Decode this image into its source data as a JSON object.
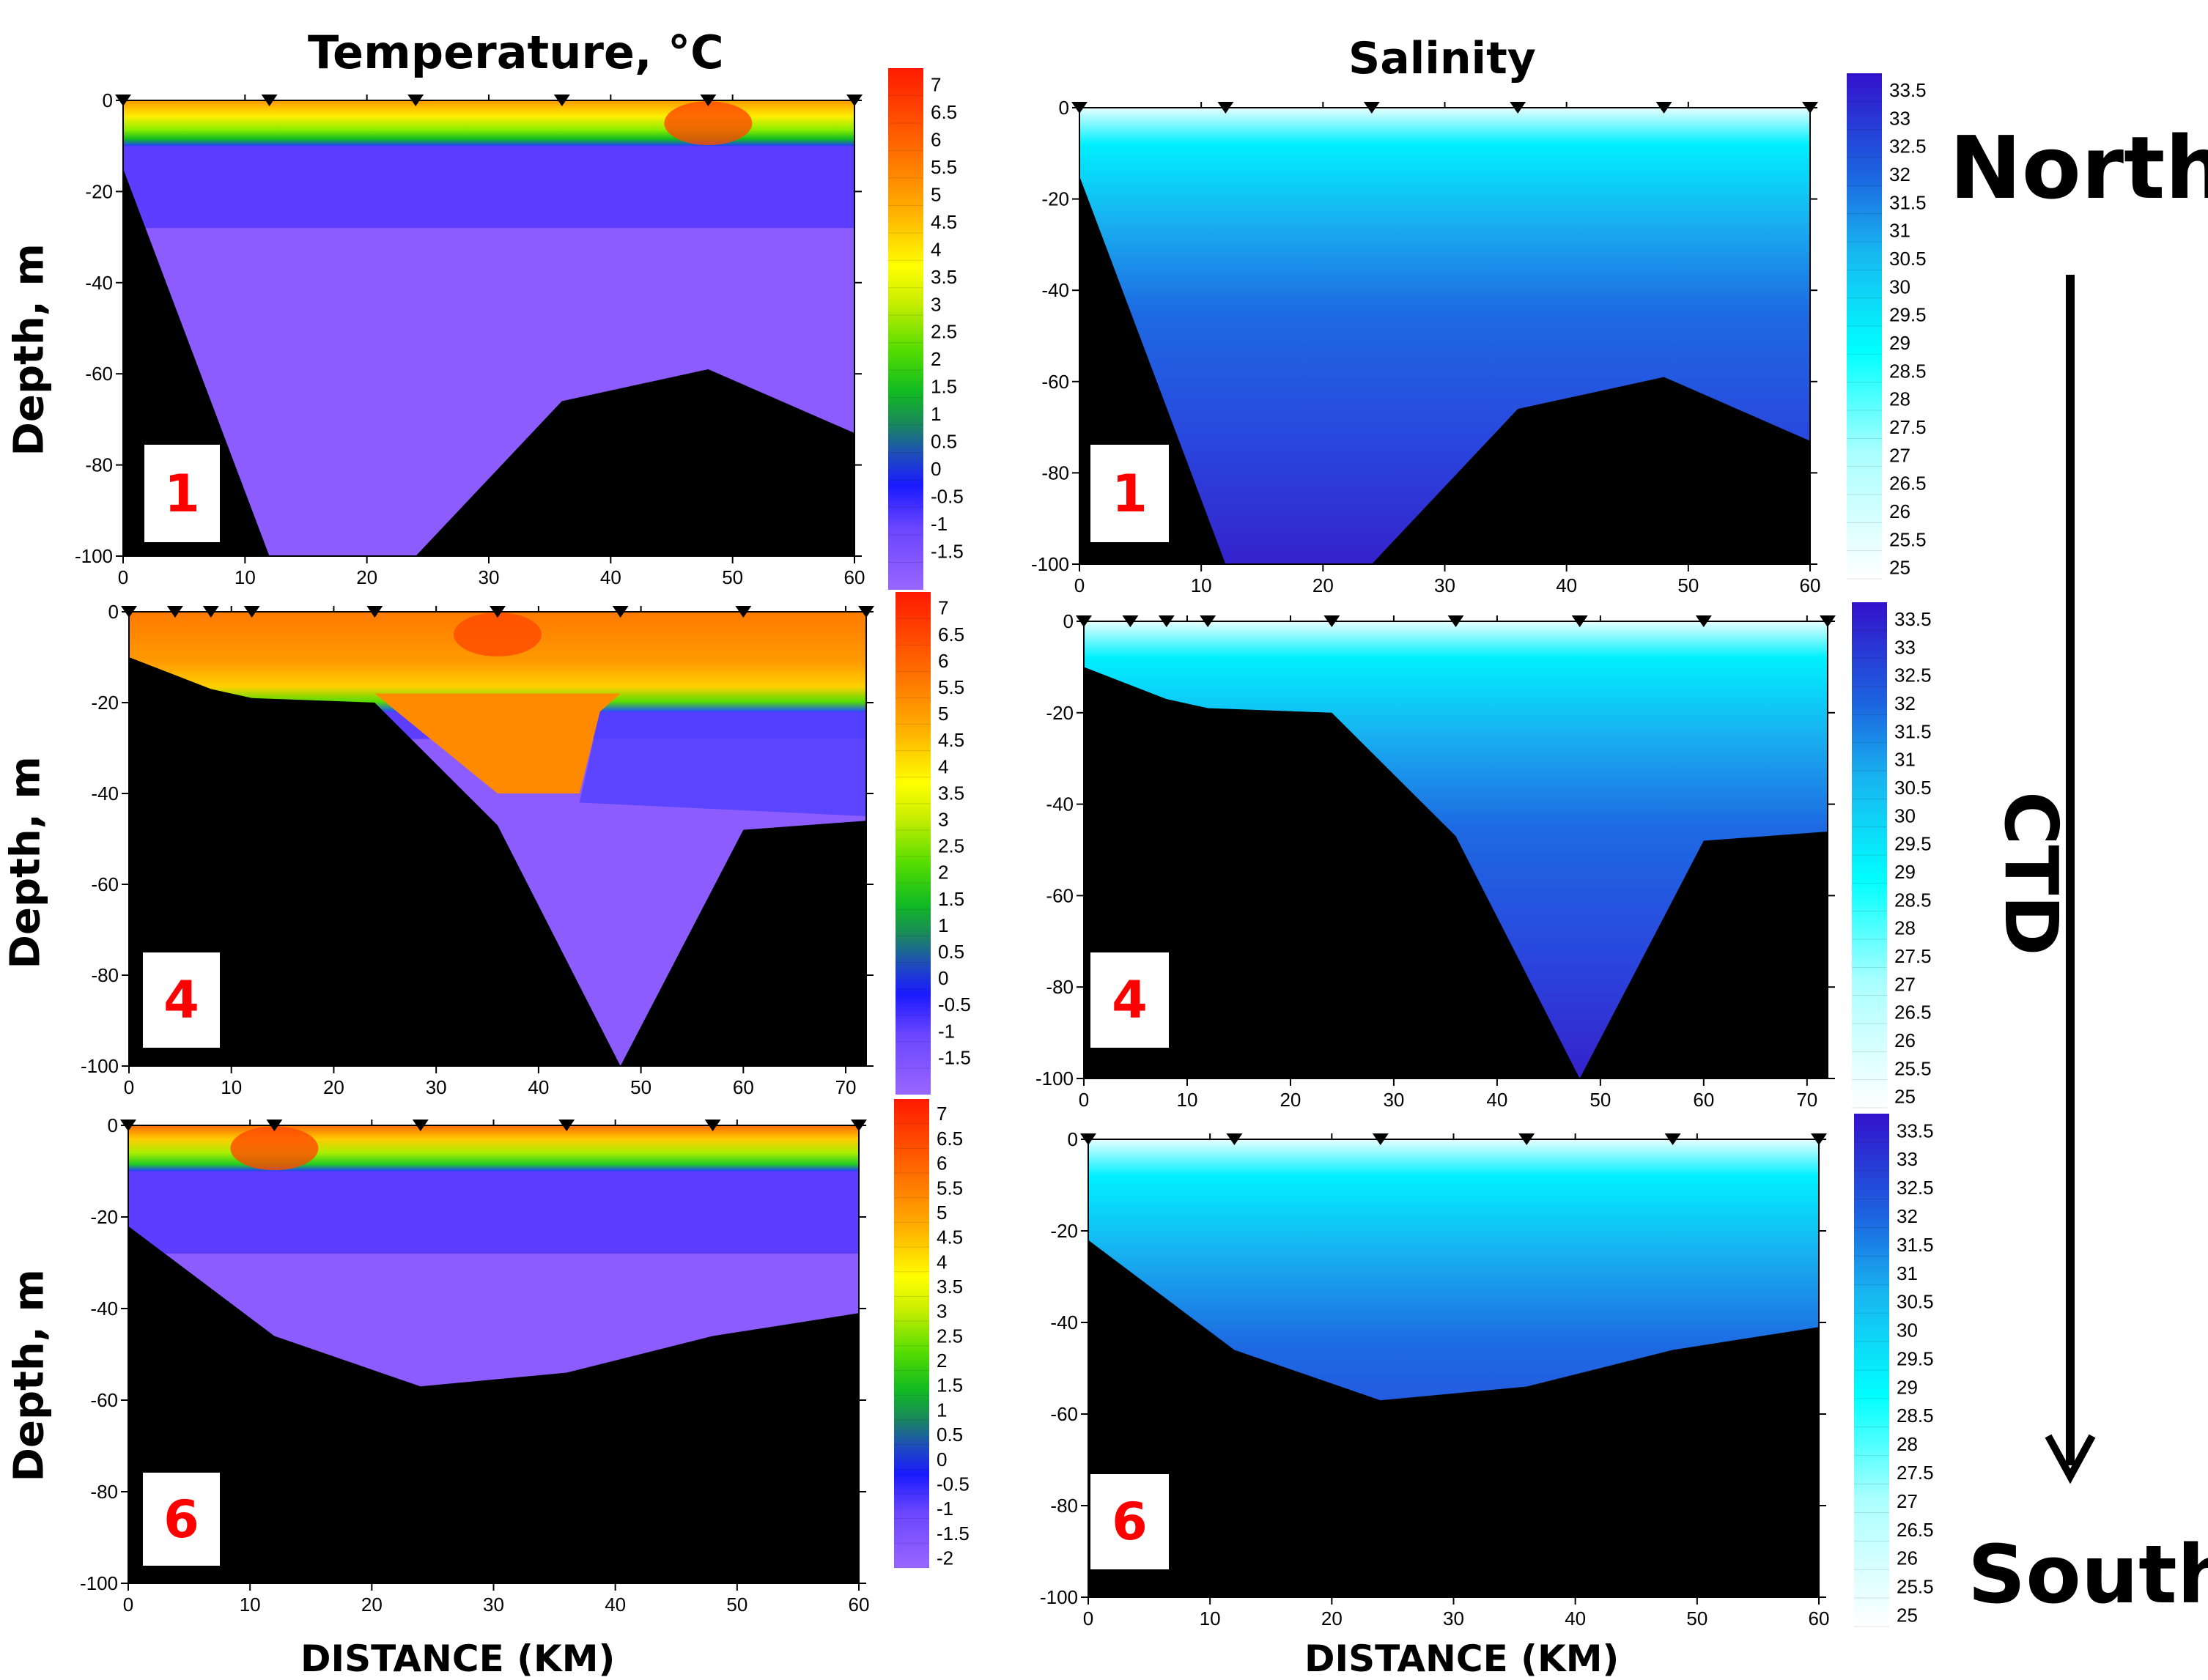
{
  "headers": {
    "temperature_title": "Temperature, °C",
    "salinity_title": "Salinity",
    "north": "North",
    "south": "South",
    "ctd": "CTD",
    "xlabel_left": "DISTANCE (KM)",
    "xlabel_right": "DISTANCE (KM)",
    "ylabel": "Depth, m"
  },
  "chart_data": [
    {
      "type": "heatmap",
      "panel": "temperature-transect-1",
      "label": "1",
      "title": "Temperature, °C",
      "ylabel": "Depth, m",
      "xlabel": "",
      "xlim": [
        0,
        60
      ],
      "ylim": [
        -100,
        0
      ],
      "x_ticks": [
        0,
        10,
        20,
        30,
        40,
        50,
        60
      ],
      "y_ticks": [
        0,
        -20,
        -40,
        -60,
        -80,
        -100
      ],
      "stations_km": [
        0,
        12,
        24,
        36,
        48,
        60
      ],
      "bottom_profile": [
        [
          0,
          -15
        ],
        [
          12,
          -100
        ],
        [
          24,
          -100
        ],
        [
          36,
          -66
        ],
        [
          48,
          -59
        ],
        [
          60,
          -73
        ]
      ],
      "colorbar": {
        "min": -2,
        "max": 7,
        "ticks": [
          "7",
          "6.5",
          "6",
          "5.5",
          "5",
          "4.5",
          "4",
          "3.5",
          "3",
          "2.5",
          "2",
          "1.5",
          "1",
          "0.5",
          "0",
          "-0.5",
          "-1",
          "-1.5"
        ]
      }
    },
    {
      "type": "heatmap",
      "panel": "salinity-transect-1",
      "label": "1",
      "title": "Salinity",
      "xlim": [
        0,
        60
      ],
      "ylim": [
        -100,
        0
      ],
      "x_ticks": [
        0,
        10,
        20,
        30,
        40,
        50,
        60
      ],
      "y_ticks": [
        0,
        -20,
        -40,
        -60,
        -80,
        -100
      ],
      "stations_km": [
        0,
        12,
        24,
        36,
        48,
        60
      ],
      "bottom_profile": [
        [
          0,
          -15
        ],
        [
          12,
          -100
        ],
        [
          24,
          -100
        ],
        [
          36,
          -66
        ],
        [
          48,
          -59
        ],
        [
          60,
          -73
        ]
      ],
      "colorbar": {
        "min": 25,
        "max": 33.5,
        "ticks": [
          "33.5",
          "33",
          "32.5",
          "32",
          "31.5",
          "31",
          "30.5",
          "30",
          "29.5",
          "29",
          "28.5",
          "28",
          "27.5",
          "27",
          "26.5",
          "26",
          "25.5",
          "25"
        ]
      }
    },
    {
      "type": "heatmap",
      "panel": "temperature-transect-4",
      "label": "4",
      "ylabel": "Depth, m",
      "xlim": [
        0,
        72
      ],
      "ylim": [
        -100,
        0
      ],
      "x_ticks": [
        0,
        10,
        20,
        30,
        40,
        50,
        60,
        70
      ],
      "y_ticks": [
        0,
        -20,
        -40,
        -60,
        -80,
        -100
      ],
      "stations_km": [
        0,
        4.5,
        8,
        12,
        24,
        36,
        48,
        60,
        72
      ],
      "bottom_profile": [
        [
          0,
          -10
        ],
        [
          8,
          -17
        ],
        [
          12,
          -19
        ],
        [
          24,
          -20
        ],
        [
          36,
          -47
        ],
        [
          48,
          -100
        ],
        [
          60,
          -48
        ],
        [
          72,
          -46
        ]
      ],
      "colorbar": {
        "min": -2,
        "max": 7,
        "ticks": [
          "7",
          "6.5",
          "6",
          "5.5",
          "5",
          "4.5",
          "4",
          "3.5",
          "3",
          "2.5",
          "2",
          "1.5",
          "1",
          "0.5",
          "0",
          "-0.5",
          "-1",
          "-1.5"
        ]
      }
    },
    {
      "type": "heatmap",
      "panel": "salinity-transect-4",
      "label": "4",
      "xlim": [
        0,
        72
      ],
      "ylim": [
        -100,
        0
      ],
      "x_ticks": [
        0,
        10,
        20,
        30,
        40,
        50,
        60,
        70
      ],
      "y_ticks": [
        0,
        -20,
        -40,
        -60,
        -80,
        -100
      ],
      "stations_km": [
        0,
        4.5,
        8,
        12,
        24,
        36,
        48,
        60,
        72
      ],
      "bottom_profile": [
        [
          0,
          -10
        ],
        [
          8,
          -17
        ],
        [
          12,
          -19
        ],
        [
          24,
          -20
        ],
        [
          36,
          -47
        ],
        [
          48,
          -100
        ],
        [
          60,
          -48
        ],
        [
          72,
          -46
        ]
      ],
      "colorbar": {
        "min": 25,
        "max": 33.5,
        "ticks": [
          "33.5",
          "33",
          "32.5",
          "32",
          "31.5",
          "31",
          "30.5",
          "30",
          "29.5",
          "29",
          "28.5",
          "28",
          "27.5",
          "27",
          "26.5",
          "26",
          "25.5",
          "25"
        ]
      }
    },
    {
      "type": "heatmap",
      "panel": "temperature-transect-6",
      "label": "6",
      "ylabel": "Depth, m",
      "xlabel": "DISTANCE (KM)",
      "xlim": [
        0,
        60
      ],
      "ylim": [
        -100,
        0
      ],
      "x_ticks": [
        0,
        10,
        20,
        30,
        40,
        50,
        60
      ],
      "y_ticks": [
        0,
        -20,
        -40,
        -60,
        -80,
        -100
      ],
      "stations_km": [
        0,
        12,
        24,
        36,
        48,
        60
      ],
      "bottom_profile": [
        [
          0,
          -22
        ],
        [
          12,
          -46
        ],
        [
          24,
          -57
        ],
        [
          36,
          -54
        ],
        [
          48,
          -46
        ],
        [
          60,
          -41
        ]
      ],
      "colorbar": {
        "min": -2,
        "max": 7,
        "ticks": [
          "7",
          "6.5",
          "6",
          "5.5",
          "5",
          "4.5",
          "4",
          "3.5",
          "3",
          "2.5",
          "2",
          "1.5",
          "1",
          "0.5",
          "0",
          "-0.5",
          "-1",
          "-1.5",
          "-2"
        ]
      }
    },
    {
      "type": "heatmap",
      "panel": "salinity-transect-6",
      "label": "6",
      "xlabel": "DISTANCE (KM)",
      "xlim": [
        0,
        60
      ],
      "ylim": [
        -100,
        0
      ],
      "x_ticks": [
        0,
        10,
        20,
        30,
        40,
        50,
        60
      ],
      "y_ticks": [
        0,
        -20,
        -40,
        -60,
        -80,
        -100
      ],
      "stations_km": [
        0,
        12,
        24,
        36,
        48,
        60
      ],
      "bottom_profile": [
        [
          0,
          -22
        ],
        [
          12,
          -46
        ],
        [
          24,
          -57
        ],
        [
          36,
          -54
        ],
        [
          48,
          -46
        ],
        [
          60,
          -41
        ]
      ],
      "colorbar": {
        "min": 25,
        "max": 33.5,
        "ticks": [
          "33.5",
          "33",
          "32.5",
          "32",
          "31.5",
          "31",
          "30.5",
          "30",
          "29.5",
          "29",
          "28.5",
          "28",
          "27.5",
          "27",
          "26.5",
          "26",
          "25.5",
          "25"
        ]
      }
    }
  ]
}
